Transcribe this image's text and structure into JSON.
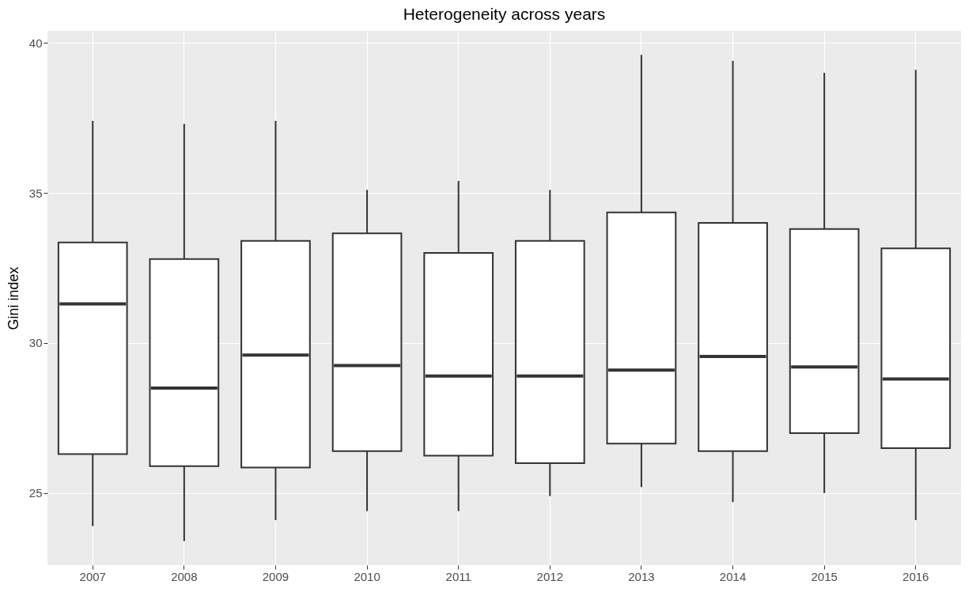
{
  "chart_data": {
    "type": "box",
    "title": "Heterogeneity across years",
    "ylabel": "Gini index",
    "categories": [
      "2007",
      "2008",
      "2009",
      "2010",
      "2011",
      "2012",
      "2013",
      "2014",
      "2015",
      "2016"
    ],
    "boxes": [
      {
        "low": 23.9,
        "q1": 26.3,
        "median": 31.3,
        "q3": 33.35,
        "high": 37.4
      },
      {
        "low": 23.4,
        "q1": 25.9,
        "median": 28.5,
        "q3": 32.8,
        "high": 37.3
      },
      {
        "low": 24.1,
        "q1": 25.85,
        "median": 29.6,
        "q3": 33.4,
        "high": 37.4
      },
      {
        "low": 24.4,
        "q1": 26.4,
        "median": 29.25,
        "q3": 33.65,
        "high": 35.1
      },
      {
        "low": 24.4,
        "q1": 26.25,
        "median": 28.9,
        "q3": 33.0,
        "high": 35.4
      },
      {
        "low": 24.9,
        "q1": 26.0,
        "median": 28.9,
        "q3": 33.4,
        "high": 35.1
      },
      {
        "low": 25.2,
        "q1": 26.65,
        "median": 29.1,
        "q3": 34.35,
        "high": 39.6
      },
      {
        "low": 24.7,
        "q1": 26.4,
        "median": 29.55,
        "q3": 34.0,
        "high": 39.4
      },
      {
        "low": 25.0,
        "q1": 27.0,
        "median": 29.2,
        "q3": 33.8,
        "high": 39.0
      },
      {
        "low": 24.1,
        "q1": 26.5,
        "median": 28.8,
        "q3": 33.15,
        "high": 39.1
      }
    ],
    "ylim": [
      22.6,
      40.4
    ],
    "yticks": [
      25,
      30,
      35,
      40
    ],
    "grid": true
  }
}
